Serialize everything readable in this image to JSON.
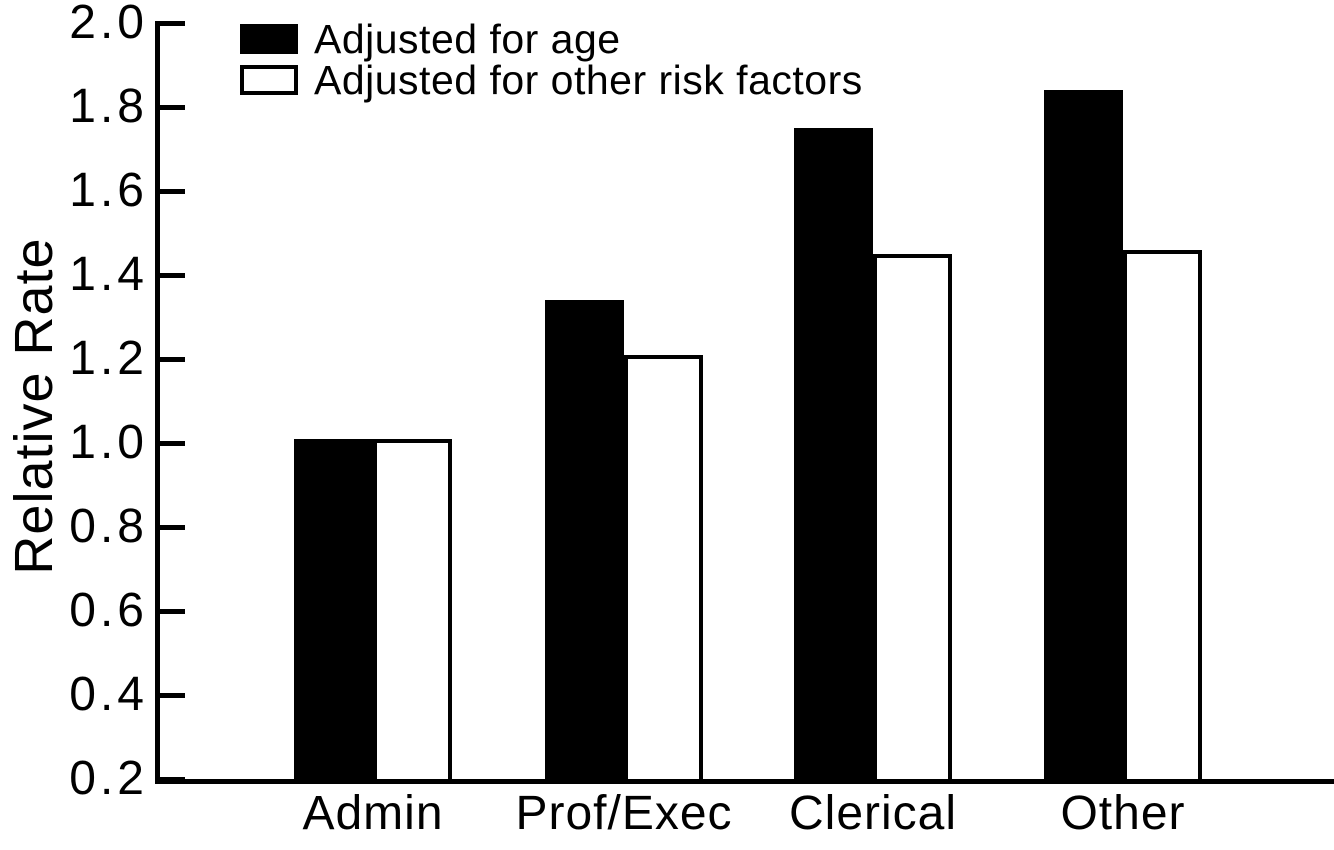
{
  "chart_data": {
    "type": "bar",
    "categories": [
      "Admin",
      "Prof/Exec",
      "Clerical",
      "Other"
    ],
    "series": [
      {
        "name": "Adjusted for age",
        "fill": "#000000",
        "values": [
          1.01,
          1.34,
          1.75,
          1.84
        ]
      },
      {
        "name": "Adjusted for other risk factors",
        "fill": "#ffffff",
        "values": [
          1.01,
          1.21,
          1.45,
          1.46
        ]
      }
    ],
    "title": "",
    "xlabel": "",
    "ylabel": "Relative Rate",
    "ylim": [
      0.2,
      2.0
    ],
    "yticks": [
      2.0,
      1.8,
      1.6,
      1.4,
      1.2,
      1.0,
      0.8,
      0.6,
      0.4,
      0.2
    ],
    "grid": false,
    "legend_position": "top-left-inside",
    "colors": {
      "axis": "#000000",
      "background": "#ffffff",
      "bar_filled": "#000000",
      "bar_hollow": "#ffffff"
    }
  }
}
